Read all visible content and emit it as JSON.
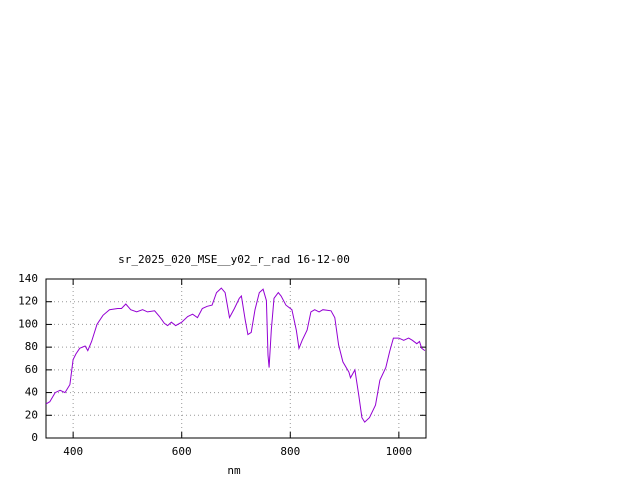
{
  "chart_data": {
    "type": "line",
    "title": "sr_2025_020_MSE__y02_r_rad 16-12-00",
    "x_label": "nm",
    "color": "#9400d3",
    "x": [
      350,
      357,
      367,
      376,
      385,
      394,
      400,
      405,
      412,
      422,
      427,
      434,
      444,
      455,
      467,
      482,
      489,
      497,
      506,
      517,
      528,
      537,
      550,
      559,
      568,
      574,
      581,
      589,
      600,
      611,
      620,
      629,
      638,
      647,
      656,
      664,
      673,
      680,
      688,
      697,
      706,
      710,
      717,
      722,
      728,
      735,
      743,
      750,
      756,
      759,
      761,
      765,
      770,
      778,
      783,
      792,
      803,
      811,
      816,
      822,
      831,
      838,
      845,
      853,
      860,
      875,
      882,
      889,
      897,
      908,
      911,
      919,
      926,
      932,
      937,
      946,
      957,
      965,
      976,
      983,
      990,
      1000,
      1009,
      1018,
      1025,
      1033,
      1038,
      1042,
      1048
    ],
    "values": [
      30,
      32,
      40,
      42,
      40,
      47,
      69,
      74,
      79,
      81,
      77,
      85,
      100,
      108,
      113,
      114,
      114,
      118,
      113,
      111,
      113,
      111,
      112,
      107,
      101,
      99,
      102,
      99,
      102,
      107,
      109,
      106,
      114,
      116,
      117,
      128,
      132,
      128,
      106,
      114,
      123,
      125,
      104,
      91,
      93,
      113,
      128,
      131,
      121,
      73,
      62,
      95,
      123,
      128,
      125,
      117,
      113,
      95,
      79,
      86,
      95,
      111,
      113,
      111,
      113,
      112,
      106,
      82,
      67,
      58,
      53,
      60,
      38,
      18,
      14,
      18,
      29,
      51,
      62,
      76,
      88,
      88,
      86,
      88,
      86,
      83,
      85,
      79,
      77
    ],
    "xlim": [
      350,
      1050
    ],
    "ylim": [
      0,
      140
    ],
    "xticks": [
      400,
      600,
      800,
      1000
    ],
    "yticks": [
      0,
      20,
      40,
      60,
      80,
      100,
      120,
      140
    ],
    "grid": true
  }
}
